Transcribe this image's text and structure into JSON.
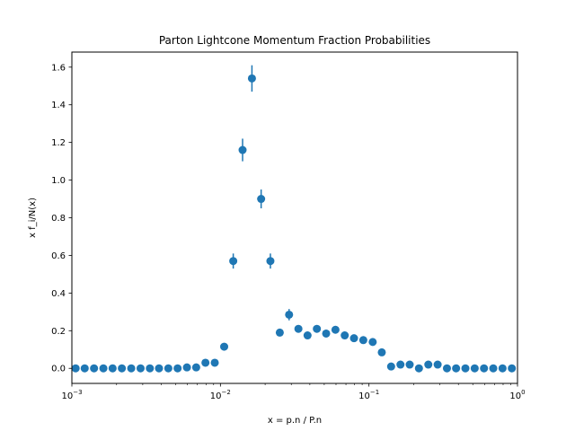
{
  "chart_data": {
    "type": "scatter",
    "title": "Parton Lightcone Momentum Fraction Probabilities",
    "xlabel": "x = p.n / P.n",
    "ylabel": "x f_i/N(x)",
    "xscale": "log",
    "xlim": [
      0.001,
      1
    ],
    "ylim": [
      -0.08,
      1.68
    ],
    "xticks": [
      {
        "value": 0.001,
        "base": "10",
        "exp": "−3"
      },
      {
        "value": 0.01,
        "base": "10",
        "exp": "−2"
      },
      {
        "value": 0.1,
        "base": "10",
        "exp": "−1"
      },
      {
        "value": 1,
        "base": "10",
        "exp": "0"
      }
    ],
    "yticks": [
      {
        "value": 0.0,
        "label": "0.0"
      },
      {
        "value": 0.2,
        "label": "0.2"
      },
      {
        "value": 0.4,
        "label": "0.4"
      },
      {
        "value": 0.6,
        "label": "0.6"
      },
      {
        "value": 0.8,
        "label": "0.8"
      },
      {
        "value": 1.0,
        "label": "1.0"
      },
      {
        "value": 1.2,
        "label": "1.2"
      },
      {
        "value": 1.4,
        "label": "1.4"
      },
      {
        "value": 1.6,
        "label": "1.6"
      }
    ],
    "color": "#1f77b4",
    "series": [
      {
        "name": "x f_i/N(x)",
        "x": [
          0.00106,
          0.00122,
          0.00141,
          0.00163,
          0.00188,
          0.00217,
          0.00251,
          0.0029,
          0.00335,
          0.00386,
          0.00446,
          0.00515,
          0.00595,
          0.00687,
          0.00793,
          0.00916,
          0.0106,
          0.0122,
          0.0141,
          0.0163,
          0.0188,
          0.0217,
          0.0251,
          0.029,
          0.0335,
          0.0386,
          0.0446,
          0.0515,
          0.0595,
          0.0687,
          0.0793,
          0.0916,
          0.106,
          0.122,
          0.141,
          0.163,
          0.188,
          0.217,
          0.251,
          0.29,
          0.335,
          0.386,
          0.446,
          0.515,
          0.595,
          0.687,
          0.793,
          0.916
        ],
        "y": [
          0,
          0,
          0,
          0,
          0,
          0,
          0,
          0,
          0,
          0,
          0,
          0,
          0.005,
          0.005,
          0.03,
          0.03,
          0.115,
          0.57,
          1.16,
          1.54,
          0.9,
          0.57,
          0.19,
          0.285,
          0.21,
          0.175,
          0.21,
          0.185,
          0.205,
          0.175,
          0.16,
          0.15,
          0.14,
          0.085,
          0.01,
          0.02,
          0.02,
          0.0,
          0.02,
          0.02,
          0,
          0,
          0,
          0,
          0,
          0,
          0,
          0
        ],
        "yerr": [
          0,
          0,
          0,
          0,
          0,
          0,
          0,
          0,
          0,
          0,
          0,
          0,
          0.005,
          0.005,
          0.01,
          0.01,
          0.02,
          0.04,
          0.06,
          0.07,
          0.05,
          0.04,
          0.02,
          0.03,
          0.02,
          0.02,
          0.02,
          0.02,
          0.02,
          0.02,
          0.015,
          0.015,
          0.015,
          0.012,
          0.006,
          0.008,
          0.008,
          0.005,
          0.008,
          0.008,
          0,
          0,
          0,
          0,
          0,
          0,
          0,
          0
        ]
      }
    ]
  }
}
